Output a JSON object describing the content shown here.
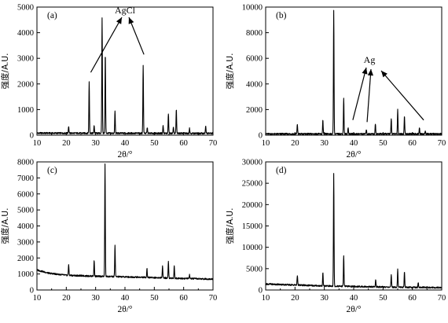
{
  "chart_data": [
    {
      "panel": "(a)",
      "type": "line",
      "xlim": [
        10,
        70
      ],
      "ylim": [
        0,
        5000
      ],
      "yticks": [
        0,
        1000,
        2000,
        3000,
        4000,
        5000
      ],
      "xticks": [
        10,
        20,
        30,
        40,
        50,
        60,
        70
      ],
      "xlabel": "2θ/°",
      "ylabel": "强度/A.U.",
      "baseline": [
        [
          10,
          80
        ],
        [
          70,
          70
        ]
      ],
      "peaks": [
        {
          "x": 20.8,
          "y": 350
        },
        {
          "x": 27.8,
          "y": 2100
        },
        {
          "x": 29.5,
          "y": 380
        },
        {
          "x": 32.2,
          "y": 4600
        },
        {
          "x": 33.3,
          "y": 3200
        },
        {
          "x": 36.6,
          "y": 950
        },
        {
          "x": 46.2,
          "y": 2750
        },
        {
          "x": 47.6,
          "y": 300
        },
        {
          "x": 53.0,
          "y": 380
        },
        {
          "x": 54.8,
          "y": 850
        },
        {
          "x": 56.5,
          "y": 300
        },
        {
          "x": 57.5,
          "y": 1000
        },
        {
          "x": 62.0,
          "y": 280
        },
        {
          "x": 67.5,
          "y": 350
        }
      ],
      "annotation": {
        "label": "AgCl",
        "targets": [
          [
            27.8,
            2450
          ],
          [
            46.2,
            3150
          ]
        ]
      }
    },
    {
      "panel": "(b)",
      "type": "line",
      "xlim": [
        10,
        70
      ],
      "ylim": [
        0,
        10000
      ],
      "yticks": [
        0,
        2000,
        4000,
        6000,
        8000,
        10000
      ],
      "xticks": [
        10,
        20,
        30,
        40,
        50,
        60,
        70
      ],
      "xlabel": "2θ/°",
      "ylabel": "强度/A.U.",
      "baseline": [
        [
          10,
          100
        ],
        [
          70,
          100
        ]
      ],
      "peaks": [
        {
          "x": 20.8,
          "y": 850
        },
        {
          "x": 29.5,
          "y": 1150
        },
        {
          "x": 33.2,
          "y": 9800
        },
        {
          "x": 36.6,
          "y": 2900
        },
        {
          "x": 38.1,
          "y": 600
        },
        {
          "x": 44.3,
          "y": 450
        },
        {
          "x": 47.4,
          "y": 900
        },
        {
          "x": 52.8,
          "y": 1300
        },
        {
          "x": 55.0,
          "y": 2000
        },
        {
          "x": 57.3,
          "y": 1500
        },
        {
          "x": 62.4,
          "y": 600
        },
        {
          "x": 64.4,
          "y": 350
        }
      ],
      "annotation": {
        "label": "Ag",
        "targets": [
          [
            38.1,
            1000
          ],
          [
            44.3,
            900
          ],
          [
            64.4,
            1300
          ]
        ]
      }
    },
    {
      "panel": "(c)",
      "type": "line",
      "xlim": [
        10,
        70
      ],
      "ylim": [
        0,
        8000
      ],
      "yticks": [
        0,
        1000,
        2000,
        3000,
        4000,
        5000,
        6000,
        7000,
        8000
      ],
      "xticks": [
        10,
        20,
        30,
        40,
        50,
        60,
        70
      ],
      "xlabel": "2θ/°",
      "ylabel": "强度/A.U.",
      "baseline": [
        [
          10,
          1250
        ],
        [
          14,
          1050
        ],
        [
          20,
          920
        ],
        [
          30,
          860
        ],
        [
          45,
          800
        ],
        [
          60,
          720
        ],
        [
          70,
          680
        ]
      ],
      "peaks": [
        {
          "x": 20.8,
          "y": 1600
        },
        {
          "x": 29.5,
          "y": 1850
        },
        {
          "x": 33.2,
          "y": 7900
        },
        {
          "x": 36.6,
          "y": 2800
        },
        {
          "x": 47.5,
          "y": 1350
        },
        {
          "x": 52.8,
          "y": 1550
        },
        {
          "x": 54.8,
          "y": 1800
        },
        {
          "x": 56.8,
          "y": 1500
        },
        {
          "x": 62.0,
          "y": 950
        }
      ]
    },
    {
      "panel": "(d)",
      "type": "line",
      "xlim": [
        10,
        70
      ],
      "ylim": [
        0,
        30000
      ],
      "yticks": [
        0,
        5000,
        10000,
        15000,
        20000,
        25000,
        30000
      ],
      "xticks": [
        10,
        20,
        30,
        40,
        50,
        60,
        70
      ],
      "xlabel": "2θ/°",
      "ylabel": "强度/A.U.",
      "baseline": [
        [
          10,
          1400
        ],
        [
          30,
          950
        ],
        [
          50,
          700
        ],
        [
          70,
          550
        ]
      ],
      "peaks": [
        {
          "x": 20.8,
          "y": 3500
        },
        {
          "x": 29.5,
          "y": 4000
        },
        {
          "x": 33.2,
          "y": 27200
        },
        {
          "x": 36.6,
          "y": 8200
        },
        {
          "x": 47.5,
          "y": 2500
        },
        {
          "x": 52.8,
          "y": 3500
        },
        {
          "x": 55.0,
          "y": 4800
        },
        {
          "x": 57.3,
          "y": 4300
        },
        {
          "x": 62.0,
          "y": 1800
        }
      ]
    }
  ]
}
